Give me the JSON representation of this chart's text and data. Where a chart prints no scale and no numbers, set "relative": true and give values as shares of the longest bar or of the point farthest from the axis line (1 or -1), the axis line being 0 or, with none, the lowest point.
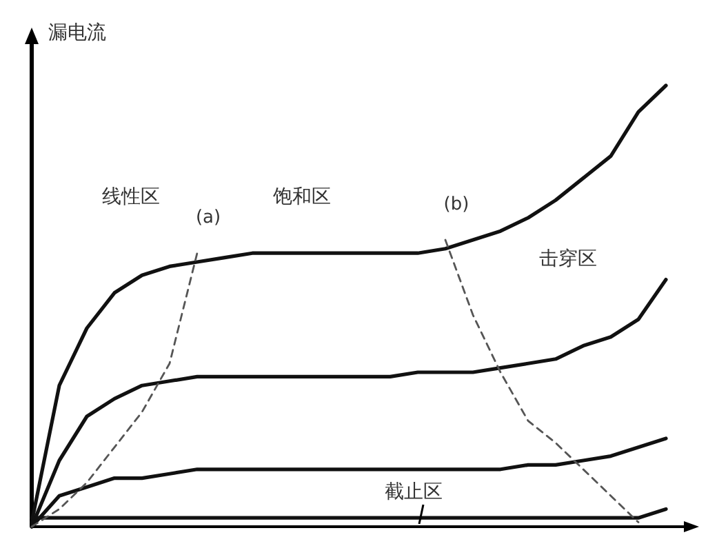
{
  "chart_data": {
    "type": "line",
    "relative": true,
    "ylabel": "漏电流",
    "categories": [
      null,
      null,
      null,
      null,
      null,
      null,
      null,
      null,
      null,
      null,
      null,
      null,
      null,
      null,
      null,
      null,
      null,
      null,
      null,
      null,
      null,
      null,
      null,
      null,
      null
    ],
    "series": [
      {
        "color": "#111111",
        "line_style": "solid",
        "values": [
          0.01,
          0.32,
          0.45,
          0.53,
          0.57,
          0.59,
          0.6,
          0.61,
          0.62,
          0.62,
          0.62,
          0.62,
          0.62,
          0.62,
          0.62,
          0.63,
          0.65,
          0.67,
          0.7,
          0.74,
          0.79,
          0.84,
          0.94,
          1,
          null
        ]
      },
      {
        "color": "#111111",
        "line_style": "solid",
        "values": [
          0,
          0.15,
          0.25,
          0.29,
          0.32,
          0.33,
          0.34,
          0.34,
          0.34,
          0.34,
          0.34,
          0.34,
          0.34,
          0.34,
          0.35,
          0.35,
          0.35,
          0.36,
          0.37,
          0.38,
          0.41,
          0.43,
          0.47,
          0.56,
          null
        ]
      },
      {
        "color": "#111111",
        "line_style": "solid",
        "values": [
          0,
          0.07,
          0.09,
          0.11,
          0.11,
          0.12,
          0.13,
          0.13,
          0.13,
          0.13,
          0.13,
          0.13,
          0.13,
          0.13,
          0.13,
          0.13,
          0.13,
          0.13,
          0.14,
          0.14,
          0.15,
          0.16,
          0.18,
          0.2,
          null
        ]
      },
      {
        "color": "#111111",
        "line_style": "solid",
        "values": [
          0.02,
          0.02,
          0.02,
          0.02,
          0.02,
          0.02,
          0.02,
          0.02,
          0.02,
          0.02,
          0.02,
          0.02,
          0.02,
          0.02,
          0.02,
          0.02,
          0.02,
          0.02,
          0.02,
          0.02,
          0.02,
          0.02,
          0.02,
          0.04,
          null
        ]
      },
      {
        "name": "(a)",
        "color": "#555555",
        "line_style": "dashed",
        "values": [
          0,
          0.04,
          0.1,
          0.18,
          0.26,
          0.37,
          0.62,
          null,
          null,
          null,
          null,
          null,
          null,
          null,
          null,
          null,
          null,
          null,
          null,
          null,
          null,
          null,
          null,
          null,
          null
        ]
      },
      {
        "name": "(b)",
        "color": "#555555",
        "line_style": "dashed",
        "values": [
          null,
          null,
          null,
          null,
          null,
          null,
          null,
          null,
          null,
          null,
          null,
          null,
          null,
          null,
          null,
          0.65,
          0.48,
          0.35,
          0.24,
          0.19,
          0.13,
          0.07,
          0.01,
          null,
          null
        ]
      }
    ],
    "annotations": [
      "线性区",
      "饱和区",
      "击穿区",
      "截止区"
    ]
  }
}
